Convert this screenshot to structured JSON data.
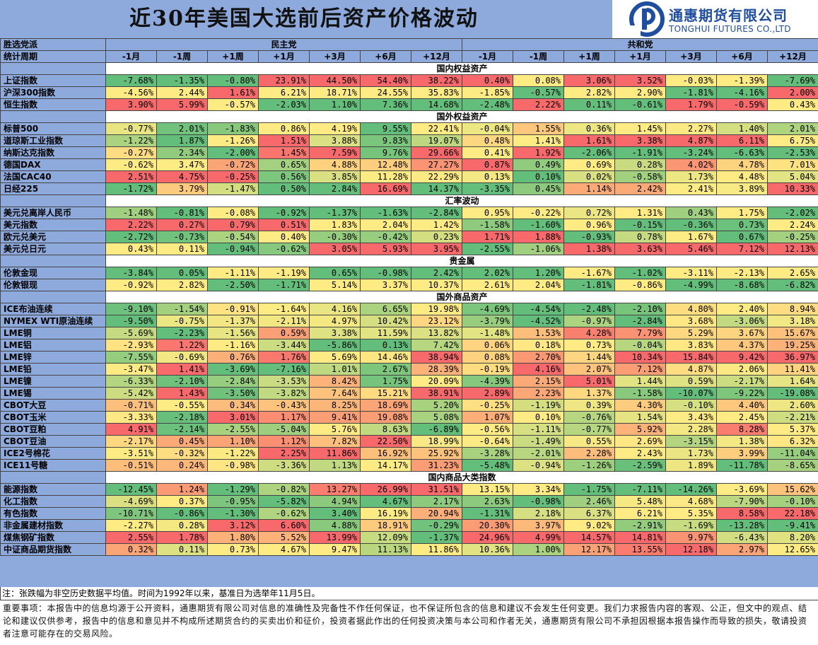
{
  "title": "近30年美国大选前后资产价格波动",
  "logo": {
    "cn": "通惠期货有限公司",
    "en": "TONGHUI FUTURES CO.,LTD"
  },
  "header": {
    "row1_label": "胜选党派",
    "row2_label": "统计周期",
    "dem": "民主党",
    "rep": "共和党",
    "periods": [
      "-1月",
      "-1周",
      "+1周",
      "+1月",
      "+3月",
      "+6月",
      "+12月"
    ]
  },
  "colors": {
    "header_bg": "#8EA9DB",
    "red": "#F8696B",
    "yellow": "#FFEB84",
    "green": "#63BE7B"
  },
  "sections": [
    {
      "title": "国内权益资产",
      "rows": [
        {
          "name": "上证指数",
          "dem": [
            "-7.68%",
            "-1.35%",
            "-0.80%",
            "23.91%",
            "44.50%",
            "54.40%",
            "38.22%"
          ],
          "rep": [
            "0.40%",
            "0.08%",
            "3.06%",
            "3.52%",
            "-0.03%",
            "-1.39%",
            "-7.69%"
          ]
        },
        {
          "name": "沪深300指数",
          "dem": [
            "-4.56%",
            "2.44%",
            "1.61%",
            "6.21%",
            "18.71%",
            "24.55%",
            "35.83%"
          ],
          "rep": [
            "-1.85%",
            "-0.57%",
            "2.82%",
            "2.90%",
            "-1.81%",
            "-4.16%",
            "2.00%"
          ]
        },
        {
          "name": "恒生指数",
          "dem": [
            "3.90%",
            "5.99%",
            "-0.57%",
            "-2.03%",
            "1.10%",
            "7.36%",
            "14.68%"
          ],
          "rep": [
            "-2.48%",
            "2.22%",
            "0.11%",
            "-0.61%",
            "1.79%",
            "-0.59%",
            "0.43%"
          ]
        }
      ]
    },
    {
      "title": "国外权益资产",
      "rows": [
        {
          "name": "标普500",
          "dem": [
            "-0.77%",
            "2.01%",
            "-1.83%",
            "0.86%",
            "4.19%",
            "9.55%",
            "22.41%"
          ],
          "rep": [
            "-0.04%",
            "1.55%",
            "0.36%",
            "1.45%",
            "2.27%",
            "1.40%",
            "2.01%"
          ]
        },
        {
          "name": "道琼斯工业指数",
          "dem": [
            "-1.22%",
            "1.87%",
            "-1.26%",
            "1.51%",
            "3.88%",
            "9.83%",
            "19.07%"
          ],
          "rep": [
            "0.48%",
            "1.41%",
            "1.61%",
            "3.38%",
            "4.87%",
            "6.11%",
            "6.75%"
          ]
        },
        {
          "name": "纳斯达克指数",
          "dem": [
            "-0.27%",
            "2.34%",
            "-2.00%",
            "1.45%",
            "7.59%",
            "9.76%",
            "29.66%"
          ],
          "rep": [
            "0.41%",
            "1.92%",
            "-2.06%",
            "-1.91%",
            "-3.24%",
            "-6.63%",
            "-2.53%"
          ]
        },
        {
          "name": "德国DAX",
          "dem": [
            "-0.62%",
            "3.47%",
            "-0.72%",
            "0.65%",
            "4.88%",
            "12.48%",
            "27.27%"
          ],
          "rep": [
            "0.87%",
            "0.49%",
            "0.69%",
            "0.28%",
            "4.02%",
            "4.78%",
            "7.01%"
          ]
        },
        {
          "name": "法国CAC40",
          "dem": [
            "2.51%",
            "4.75%",
            "-0.25%",
            "0.56%",
            "3.85%",
            "11.28%",
            "22.29%"
          ],
          "rep": [
            "0.13%",
            "0.10%",
            "0.02%",
            "-0.58%",
            "1.73%",
            "4.48%",
            "5.04%"
          ]
        },
        {
          "name": "日经225",
          "dem": [
            "-1.72%",
            "3.79%",
            "-1.47%",
            "0.50%",
            "2.84%",
            "16.69%",
            "14.37%"
          ],
          "rep": [
            "-3.35%",
            "0.45%",
            "1.14%",
            "2.42%",
            "2.41%",
            "3.89%",
            "10.33%"
          ]
        }
      ]
    },
    {
      "title": "汇率波动",
      "rows": [
        {
          "name": "美元兑离岸人民币",
          "dem": [
            "-1.48%",
            "-0.81%",
            "-0.08%",
            "-0.92%",
            "-1.37%",
            "-1.63%",
            "-2.84%"
          ],
          "rep": [
            "0.95%",
            "-0.22%",
            "0.72%",
            "1.31%",
            "0.43%",
            "1.75%",
            "-2.02%"
          ]
        },
        {
          "name": "美元指数",
          "dem": [
            "2.22%",
            "0.27%",
            "0.79%",
            "0.51%",
            "1.83%",
            "2.04%",
            "1.42%"
          ],
          "rep": [
            "-1.58%",
            "-1.60%",
            "0.96%",
            "-0.15%",
            "-0.36%",
            "0.73%",
            "2.24%"
          ]
        },
        {
          "name": "欧元兑美元",
          "dem": [
            "-2.72%",
            "-0.73%",
            "-0.54%",
            "0.40%",
            "-0.30%",
            "-0.42%",
            "0.23%"
          ],
          "rep": [
            "1.71%",
            "1.88%",
            "-0.93%",
            "0.78%",
            "1.67%",
            "0.67%",
            "-0.25%"
          ]
        },
        {
          "name": "美元兑日元",
          "dem": [
            "0.43%",
            "0.11%",
            "-0.94%",
            "-0.62%",
            "3.05%",
            "5.93%",
            "3.95%"
          ],
          "rep": [
            "-2.55%",
            "-1.06%",
            "1.38%",
            "3.63%",
            "5.46%",
            "7.12%",
            "12.13%"
          ]
        }
      ]
    },
    {
      "title": "贵金属",
      "rows": [
        {
          "name": "伦敦金现",
          "dem": [
            "-3.84%",
            "0.05%",
            "-1.11%",
            "-1.19%",
            "0.65%",
            "-0.98%",
            "2.42%"
          ],
          "rep": [
            "2.02%",
            "1.20%",
            "-1.67%",
            "-1.02%",
            "-3.11%",
            "-2.13%",
            "2.65%"
          ]
        },
        {
          "name": "伦敦银现",
          "dem": [
            "-0.92%",
            "2.82%",
            "-2.50%",
            "-1.71%",
            "5.14%",
            "3.37%",
            "10.37%"
          ],
          "rep": [
            "2.61%",
            "2.04%",
            "-1.81%",
            "-0.86%",
            "-4.99%",
            "-8.68%",
            "-6.82%"
          ]
        }
      ]
    },
    {
      "title": "国外商品资产",
      "rows": [
        {
          "name": "ICE布油连续",
          "dem": [
            "-9.10%",
            "-1.54%",
            "-0.91%",
            "-1.64%",
            "4.16%",
            "6.65%",
            "19.98%"
          ],
          "rep": [
            "-4.69%",
            "-4.54%",
            "-2.48%",
            "-2.10%",
            "4.80%",
            "2.40%",
            "8.94%"
          ]
        },
        {
          "name": "NYMEX WTI原油连续",
          "dem": [
            "-9.50%",
            "-0.75%",
            "-1.37%",
            "-2.11%",
            "4.97%",
            "10.42%",
            "23.12%"
          ],
          "rep": [
            "-3.79%",
            "-4.52%",
            "-0.97%",
            "-2.84%",
            "3.68%",
            "-3.06%",
            "3.18%"
          ]
        },
        {
          "name": "LME铜",
          "dem": [
            "-5.69%",
            "-2.23%",
            "-1.56%",
            "0.59%",
            "3.38%",
            "11.59%",
            "13.82%"
          ],
          "rep": [
            "-1.48%",
            "1.53%",
            "4.28%",
            "7.79%",
            "5.29%",
            "3.67%",
            "15.67%"
          ]
        },
        {
          "name": "LME铝",
          "dem": [
            "-2.93%",
            "1.22%",
            "-1.16%",
            "-3.44%",
            "-5.86%",
            "0.13%",
            "7.42%"
          ],
          "rep": [
            "0.06%",
            "0.18%",
            "0.73%",
            "-0.04%",
            "3.83%",
            "4.37%",
            "19.25%"
          ]
        },
        {
          "name": "LME锌",
          "dem": [
            "-7.55%",
            "-0.69%",
            "0.76%",
            "1.76%",
            "5.69%",
            "14.46%",
            "38.94%"
          ],
          "rep": [
            "0.08%",
            "2.70%",
            "1.44%",
            "10.34%",
            "15.84%",
            "9.42%",
            "36.97%"
          ]
        },
        {
          "name": "LME铅",
          "dem": [
            "-3.47%",
            "1.41%",
            "-3.69%",
            "-7.16%",
            "1.01%",
            "2.67%",
            "28.39%"
          ],
          "rep": [
            "-0.19%",
            "4.16%",
            "2.07%",
            "7.12%",
            "4.87%",
            "2.06%",
            "11.41%"
          ]
        },
        {
          "name": "LME镍",
          "dem": [
            "-6.33%",
            "-2.10%",
            "-2.84%",
            "-3.53%",
            "8.42%",
            "1.75%",
            "20.09%"
          ],
          "rep": [
            "-4.39%",
            "2.15%",
            "5.01%",
            "1.44%",
            "0.59%",
            "-2.17%",
            "1.64%"
          ]
        },
        {
          "name": "LME锡",
          "dem": [
            "-5.42%",
            "1.43%",
            "-3.50%",
            "-3.82%",
            "7.64%",
            "15.21%",
            "38.91%"
          ],
          "rep": [
            "2.89%",
            "2.23%",
            "1.37%",
            "-1.58%",
            "-10.07%",
            "-9.22%",
            "-19.08%"
          ]
        },
        {
          "name": "CBOT大豆",
          "dem": [
            "-0.71%",
            "-0.55%",
            "0.34%",
            "-0.43%",
            "8.25%",
            "18.69%",
            "5.20%"
          ],
          "rep": [
            "-0.25%",
            "-1.19%",
            "0.39%",
            "4.30%",
            "-0.10%",
            "4.40%",
            "2.60%"
          ]
        },
        {
          "name": "CBOT玉米",
          "dem": [
            "-3.33%",
            "-2.18%",
            "3.01%",
            "1.17%",
            "9.41%",
            "19.08%",
            "5.08%"
          ],
          "rep": [
            "1.07%",
            "0.10%",
            "-0.76%",
            "1.54%",
            "3.43%",
            "2.45%",
            "-2.21%"
          ]
        },
        {
          "name": "CBOT豆粕",
          "dem": [
            "4.91%",
            "-2.14%",
            "-2.55%",
            "-5.04%",
            "5.76%",
            "8.63%",
            "-6.89%"
          ],
          "rep": [
            "-0.56%",
            "-1.11%",
            "-0.77%",
            "5.92%",
            "2.28%",
            "8.28%",
            "5.37%"
          ]
        },
        {
          "name": "CBOT豆油",
          "dem": [
            "-2.17%",
            "0.45%",
            "1.10%",
            "1.12%",
            "7.82%",
            "22.50%",
            "18.99%"
          ],
          "rep": [
            "-0.64%",
            "-1.49%",
            "0.55%",
            "2.69%",
            "-3.15%",
            "1.38%",
            "6.32%"
          ]
        },
        {
          "name": "ICE2号棉花",
          "dem": [
            "-3.51%",
            "-0.32%",
            "-1.22%",
            "2.25%",
            "11.86%",
            "16.92%",
            "25.92%"
          ],
          "rep": [
            "-3.28%",
            "-2.01%",
            "2.28%",
            "2.43%",
            "1.73%",
            "3.99%",
            "-11.04%"
          ]
        },
        {
          "name": "ICE11号糖",
          "dem": [
            "-0.51%",
            "0.24%",
            "-0.98%",
            "-3.36%",
            "1.13%",
            "14.17%",
            "31.23%"
          ],
          "rep": [
            "-5.48%",
            "-0.94%",
            "-1.26%",
            "-2.59%",
            "1.89%",
            "-11.78%",
            "-8.65%"
          ]
        }
      ]
    },
    {
      "title": "国内商品大类指数",
      "rows": [
        {
          "name": "能源指数",
          "dem": [
            "-12.45%",
            "1.24%",
            "-1.29%",
            "-0.82%",
            "13.27%",
            "26.99%",
            "31.51%"
          ],
          "rep": [
            "13.15%",
            "3.34%",
            "-1.75%",
            "-7.11%",
            "-14.26%",
            "-3.69%",
            "15.62%"
          ]
        },
        {
          "name": "化工指数",
          "dem": [
            "-4.69%",
            "0.37%",
            "-0.95%",
            "-5.82%",
            "4.94%",
            "4.67%",
            "2.17%"
          ],
          "rep": [
            "2.63%",
            "-0.98%",
            "2.46%",
            "5.48%",
            "4.68%",
            "-7.90%",
            "-0.10%"
          ]
        },
        {
          "name": "有色指数",
          "dem": [
            "-10.71%",
            "-0.86%",
            "-1.30%",
            "-0.62%",
            "3.40%",
            "16.19%",
            "20.94%"
          ],
          "rep": [
            "-1.31%",
            "2.18%",
            "6.37%",
            "6.21%",
            "5.35%",
            "8.58%",
            "22.18%"
          ]
        },
        {
          "name": "非金属建材指数",
          "dem": [
            "-2.27%",
            "0.28%",
            "3.12%",
            "6.60%",
            "4.88%",
            "18.91%",
            "-0.29%"
          ],
          "rep": [
            "20.30%",
            "3.97%",
            "9.02%",
            "-2.91%",
            "-1.69%",
            "-13.28%",
            "-9.41%"
          ]
        },
        {
          "name": "煤焦钢矿指数",
          "dem": [
            "2.55%",
            "1.78%",
            "1.80%",
            "5.52%",
            "13.99%",
            "12.09%",
            "-1.37%"
          ],
          "rep": [
            "24.96%",
            "4.99%",
            "14.57%",
            "14.81%",
            "9.97%",
            "-6.43%",
            "8.20%"
          ]
        },
        {
          "name": "中证商品期货指数",
          "dem": [
            "0.32%",
            "0.11%",
            "0.73%",
            "4.67%",
            "9.47%",
            "11.13%",
            "11.86%"
          ],
          "rep": [
            "10.36%",
            "1.00%",
            "12.17%",
            "13.55%",
            "12.18%",
            "2.97%",
            "12.65%"
          ]
        }
      ]
    }
  ],
  "note": "注：张跌幅为非空历史数据平均值。时间为1992年以来，基准日为选举年11月5日。",
  "disclaimer": "重要事项：本报告中的信息均源于公开资料，通惠期货有限公司对信息的准确性及完备性不作任何保证，也不保证所包含的信息和建议不会发生任何变更。我们力求报告内容的客观、公正，但文中的观点、结论和建议仅供参考，报告中的信息和意见并不构成所述期货合约的买卖出价和征价，投资者据此作出的任何投资决策与本公司和作者无关，通惠期货有限公司不承担因根据本报告操作而导致的损失，敬请投资者注意可能存在的交易风险。"
}
